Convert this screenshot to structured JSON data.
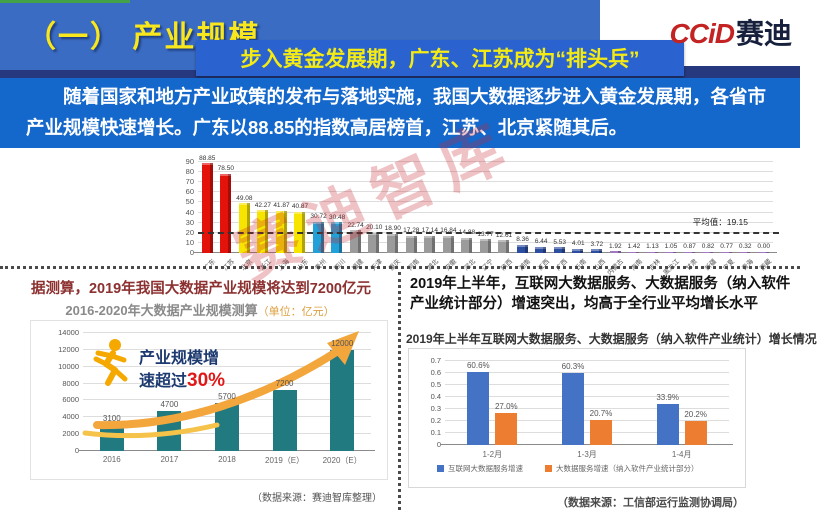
{
  "header": {
    "section_label": "（一） 产业规模",
    "subtitle": "步入黄金发展期，广东、江苏成为“排头兵”",
    "logo": {
      "latin": "CCiD",
      "cn": "赛迪"
    }
  },
  "banner": {
    "text": "随着国家和地方产业政策的发布与落地实施，我国大数据逐步进入黄金发展期，各省市产业规模快速增长。广东以88.85的指数高居榜首，江苏、北京紧随其后。"
  },
  "watermark": {
    "text": "赛迪智库"
  },
  "chart_data": [
    {
      "id": "province-index",
      "type": "bar",
      "categories": [
        "广东",
        "江苏",
        "北京",
        "浙江",
        "上海",
        "山东",
        "贵州",
        "四川",
        "福建",
        "天津",
        "重庆",
        "河南",
        "湖北",
        "安徽",
        "河北",
        "辽宁",
        "陕西",
        "湖南",
        "江西",
        "广西",
        "云南",
        "山西",
        "内蒙古",
        "海南",
        "吉林",
        "黑龙江",
        "甘肃",
        "新疆",
        "宁夏",
        "青海",
        "西藏"
      ],
      "values": [
        88.85,
        78.5,
        49.08,
        42.27,
        41.87,
        40.87,
        30.72,
        30.48,
        22.74,
        20.1,
        18.9,
        17.28,
        17.14,
        16.84,
        14.88,
        13.77,
        12.61,
        8.36,
        6.44,
        5.53,
        4.01,
        3.72,
        1.92,
        1.42,
        1.13,
        1.05,
        0.87,
        0.82,
        0.77,
        0.32,
        0.0
      ],
      "colors": [
        "#e3120b",
        "#e3120b",
        "#f7e400",
        "#f7e400",
        "#f7e400",
        "#f7e400",
        "#22a0d8",
        "#22a0d8",
        "#9b9b9b",
        "#9b9b9b",
        "#9b9b9b",
        "#9b9b9b",
        "#9b9b9b",
        "#9b9b9b",
        "#9b9b9b",
        "#9b9b9b",
        "#9b9b9b",
        "#2b4ea0",
        "#2b4ea0",
        "#2b4ea0",
        "#2b4ea0",
        "#2b4ea0",
        "#7030a0",
        "#7030a0",
        "#7030a0",
        "#7030a0",
        "#7030a0",
        "#7030a0",
        "#7030a0",
        "#7030a0",
        "#7030a0"
      ],
      "average_value": 19.15,
      "average_label": "平均值：19.15",
      "ylim": [
        0,
        90
      ],
      "ytick_step": 10
    },
    {
      "id": "scale-forecast",
      "type": "bar",
      "heading": "据测算，2019年我国大数据产业规模将达到7200亿元",
      "title_main": "2016-2020年大数据产业规模测算",
      "title_unit": "（单位：亿元）",
      "categories": [
        "2016",
        "2017",
        "2018",
        "2019（E）",
        "2020（E）"
      ],
      "values": [
        3100,
        4700,
        5700,
        7200,
        12000
      ],
      "bar_color": "#217a80",
      "ylim": [
        0,
        14000
      ],
      "ytick_step": 2000,
      "annotation": {
        "line1": "产业规模增",
        "line2_prefix": "速超过",
        "highlight": "30%"
      },
      "source": "（数据来源：赛迪智库整理）"
    },
    {
      "id": "growth-2019",
      "type": "bar",
      "heading": "2019年上半年，互联网大数据服务、大数据服务（纳入软件产业统计部分）增速突出，均高于全行业平均增长水平",
      "title": "2019年上半年互联网大数据服务、大数据服务（纳入软件产业统计）增长情况",
      "categories": [
        "1-2月",
        "1-3月",
        "1-4月"
      ],
      "series": [
        {
          "name": "互联网大数据服务增速",
          "color": "#4472c4",
          "values": [
            0.606,
            0.603,
            0.339
          ],
          "labels": [
            "60.6%",
            "60.3%",
            "33.9%"
          ]
        },
        {
          "name": "大数据服务增速（纳入软件产业统计部分）",
          "color": "#ed7d31",
          "values": [
            0.27,
            0.207,
            0.202
          ],
          "labels": [
            "27.0%",
            "20.7%",
            "20.2%"
          ]
        }
      ],
      "ylim": [
        0,
        0.7
      ],
      "ytick_step": 0.1,
      "source": "（数据来源：工信部运行监测协调局）"
    }
  ]
}
